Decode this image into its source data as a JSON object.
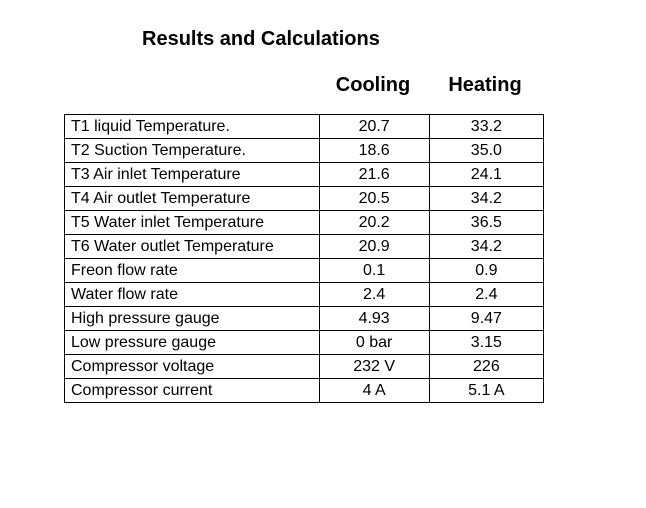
{
  "title": "Results and Calculations",
  "columns": {
    "cooling": "Cooling",
    "heating": "Heating"
  },
  "rows": [
    {
      "label": "T1 liquid Temperature.",
      "cooling": "20.7",
      "heating": "33.2"
    },
    {
      "label": "T2 Suction Temperature.",
      "cooling": "18.6",
      "heating": "35.0"
    },
    {
      "label": "T3 Air inlet Temperature",
      "cooling": "21.6",
      "heating": "24.1"
    },
    {
      "label": "T4 Air outlet Temperature",
      "cooling": "20.5",
      "heating": "34.2"
    },
    {
      "label": "T5 Water inlet Temperature",
      "cooling": "20.2",
      "heating": "36.5"
    },
    {
      "label": "T6 Water outlet Temperature",
      "cooling": "20.9",
      "heating": "34.2"
    },
    {
      "label": "Freon flow rate",
      "cooling": "0.1",
      "heating": "0.9"
    },
    {
      "label": "Water flow rate",
      "cooling": "2.4",
      "heating": "2.4"
    },
    {
      "label": "High pressure gauge",
      "cooling": "4.93",
      "heating": "9.47"
    },
    {
      "label": "Low pressure gauge",
      "cooling": "0 bar",
      "heating": "3.15"
    },
    {
      "label": "Compressor voltage",
      "cooling": "232 V",
      "heating": "226"
    },
    {
      "label": "Compressor current",
      "cooling": "4 A",
      "heating": "5.1 A"
    }
  ]
}
